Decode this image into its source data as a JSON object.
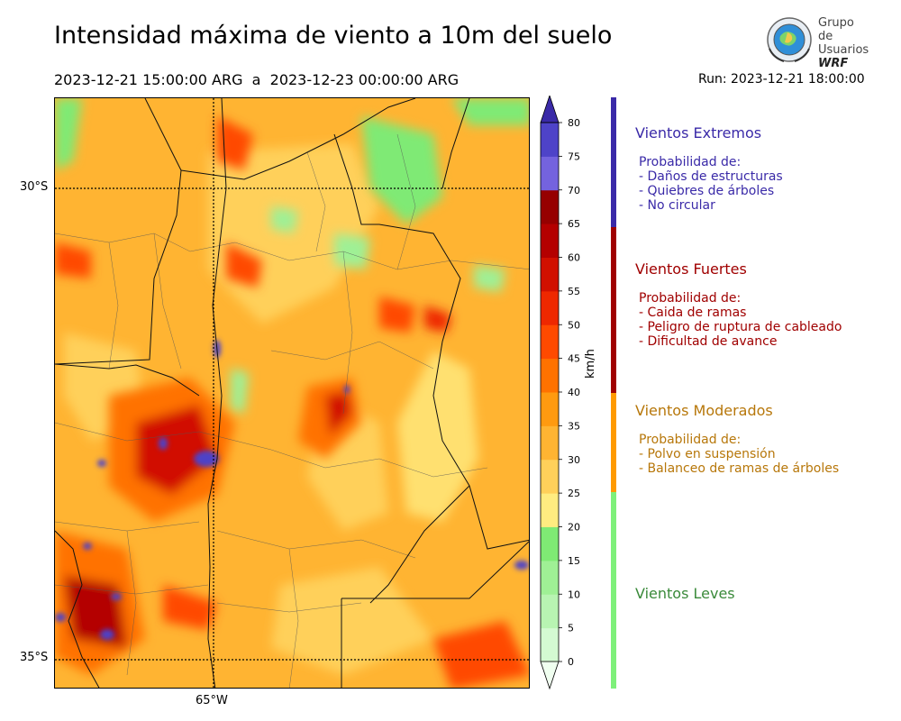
{
  "header": {
    "title": "Intensidad máxima de viento a 10m del suelo",
    "date_start": "2023-12-21 15:00:00 ARG",
    "date_sep": "a",
    "date_end": "2023-12-23 00:00:00 ARG",
    "run": "Run: 2023-12-21 18:00:00"
  },
  "logo": {
    "line1": "Grupo de",
    "line2": "Usuarios",
    "line3": "WRF",
    "icon": "globe-emblem-icon"
  },
  "map": {
    "lat_labels": [
      "30°S",
      "35°S"
    ],
    "lon_labels": [
      "65°W"
    ]
  },
  "colorbar": {
    "unit": "km/h",
    "ticks": [
      "0",
      "5",
      "10",
      "15",
      "20",
      "25",
      "30",
      "35",
      "40",
      "45",
      "50",
      "55",
      "60",
      "65",
      "70",
      "75",
      "80"
    ],
    "colors": [
      "#f0fff0",
      "#d4fad2",
      "#b8f4b2",
      "#9ff095",
      "#7fea74",
      "#ffec80",
      "#ffd05a",
      "#ffb432",
      "#ff9a10",
      "#ff7200",
      "#ff4a00",
      "#ee2800",
      "#d11000",
      "#b40000",
      "#960000",
      "#7463de",
      "#4e43c8",
      "#3a2aa8"
    ]
  },
  "categories": [
    {
      "title": "Vientos Extremos",
      "color": "#3a2aa8",
      "text_color": "#3a2aa8",
      "header": "Probabilidad de:",
      "items": [
        "- Daños de estructuras",
        "- Quiebres de árboles",
        "- No circular"
      ]
    },
    {
      "title": "Vientos Fuertes",
      "color": "#a00000",
      "text_color": "#a00000",
      "header": "Probabilidad de:",
      "items": [
        "- Caida de ramas",
        "- Peligro de ruptura de cableado",
        "- Dificultad de avance"
      ]
    },
    {
      "title": "Vientos Moderados",
      "color": "#ff9a00",
      "text_color": "#b7770a",
      "header": "Probabilidad de:",
      "items": [
        "- Polvo en suspensión",
        "- Balanceo de ramas de árboles"
      ]
    },
    {
      "title": "Vientos Leves",
      "color": "#7ef07a",
      "text_color": "#3a8a3a",
      "header": "",
      "items": []
    }
  ]
}
